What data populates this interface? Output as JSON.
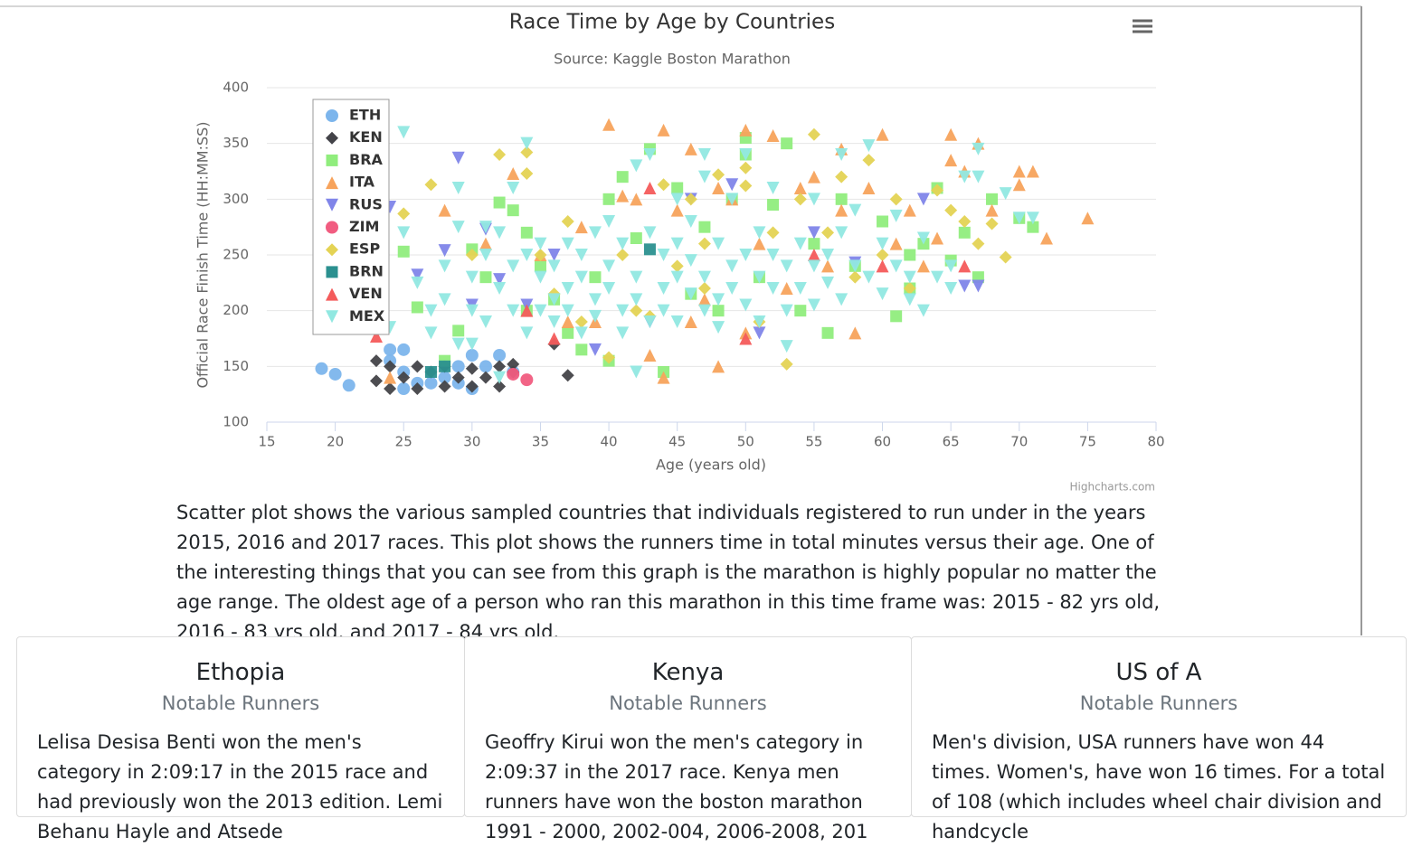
{
  "chart_data": {
    "type": "scatter",
    "title": "Race Time by Age by Countries",
    "subtitle": "Source: Kaggle Boston Marathon",
    "x_label": "Age (years old)",
    "y_label": "Official Race Finish Time (HH:MM:SS)",
    "credits": "Highcharts.com",
    "xlim": [
      15,
      80
    ],
    "ylim": [
      100,
      400
    ],
    "xticks": [
      15,
      20,
      25,
      30,
      35,
      40,
      45,
      50,
      55,
      60,
      65,
      70,
      75,
      80
    ],
    "yticks": [
      100,
      150,
      200,
      250,
      300,
      350,
      400
    ],
    "grid": true,
    "legend_position": "top-left",
    "series": [
      {
        "name": "ETH",
        "color": "#7cb5ec",
        "marker": "circle",
        "x": [
          19,
          20,
          21,
          24,
          24,
          25,
          25,
          25,
          26,
          27,
          28,
          29,
          30,
          30,
          31,
          32,
          33,
          29
        ],
        "values": [
          148,
          143,
          133,
          165,
          155,
          165,
          145,
          130,
          135,
          135,
          140,
          135,
          130,
          160,
          150,
          160,
          145,
          150
        ]
      },
      {
        "name": "KEN",
        "color": "#434348",
        "marker": "diamond",
        "x": [
          23,
          23,
          24,
          24,
          25,
          26,
          26,
          27,
          28,
          28,
          29,
          30,
          30,
          31,
          32,
          32,
          33,
          33,
          37,
          36
        ],
        "values": [
          155,
          137,
          150,
          130,
          140,
          150,
          130,
          145,
          150,
          132,
          140,
          148,
          132,
          140,
          150,
          132,
          145,
          152,
          142,
          170
        ]
      },
      {
        "name": "BRA",
        "color": "#90ed7d",
        "marker": "square",
        "x": [
          25,
          26,
          28,
          29,
          30,
          31,
          32,
          33,
          34,
          34,
          35,
          36,
          37,
          38,
          39,
          40,
          40,
          41,
          42,
          43,
          44,
          45,
          46,
          47,
          48,
          49,
          50,
          50,
          51,
          52,
          53,
          54,
          55,
          56,
          57,
          58,
          60,
          61,
          62,
          63,
          64,
          65,
          66,
          68,
          70,
          71,
          67,
          62
        ],
        "values": [
          253,
          203,
          155,
          182,
          255,
          230,
          297,
          290,
          270,
          200,
          240,
          210,
          180,
          165,
          230,
          300,
          155,
          320,
          265,
          345,
          145,
          310,
          215,
          275,
          200,
          300,
          355,
          340,
          230,
          295,
          350,
          200,
          260,
          180,
          300,
          240,
          280,
          195,
          220,
          260,
          310,
          245,
          270,
          300,
          283,
          275,
          230,
          250
        ]
      },
      {
        "name": "ITA",
        "color": "#f7a35c",
        "marker": "triangle",
        "x": [
          24,
          28,
          31,
          33,
          35,
          37,
          38,
          40,
          41,
          42,
          44,
          44,
          45,
          46,
          47,
          48,
          48,
          49,
          50,
          50,
          51,
          52,
          53,
          54,
          55,
          56,
          57,
          58,
          59,
          60,
          61,
          62,
          63,
          65,
          65,
          67,
          68,
          70,
          70,
          71,
          72,
          75,
          66,
          64,
          57,
          46,
          43,
          39
        ],
        "values": [
          140,
          290,
          260,
          323,
          250,
          190,
          275,
          367,
          303,
          300,
          362,
          140,
          290,
          345,
          210,
          150,
          310,
          300,
          362,
          180,
          260,
          357,
          220,
          310,
          320,
          240,
          290,
          180,
          310,
          358,
          260,
          290,
          240,
          358,
          335,
          350,
          290,
          325,
          313,
          325,
          265,
          283,
          325,
          265,
          345,
          190,
          160,
          190
        ]
      },
      {
        "name": "RUS",
        "color": "#8085e9",
        "marker": "triangle-down",
        "x": [
          24,
          26,
          28,
          29,
          31,
          32,
          34,
          39,
          43,
          46,
          49,
          51,
          55,
          58,
          63,
          66,
          67,
          36,
          30
        ],
        "values": [
          293,
          232,
          254,
          337,
          273,
          228,
          205,
          165,
          190,
          300,
          313,
          180,
          270,
          243,
          300,
          222,
          222,
          250,
          205
        ]
      },
      {
        "name": "ZIM",
        "color": "#f15c80",
        "marker": "circle",
        "x": [
          33,
          34
        ],
        "values": [
          143,
          138
        ]
      },
      {
        "name": "ESP",
        "color": "#e4d354",
        "marker": "diamond",
        "x": [
          25,
          27,
          30,
          32,
          34,
          34,
          35,
          37,
          38,
          40,
          41,
          43,
          44,
          45,
          46,
          47,
          48,
          50,
          50,
          51,
          52,
          53,
          54,
          55,
          56,
          57,
          58,
          59,
          60,
          61,
          62,
          64,
          65,
          66,
          67,
          68,
          69,
          47,
          42,
          36
        ],
        "values": [
          287,
          313,
          250,
          340,
          342,
          323,
          250,
          280,
          190,
          158,
          250,
          195,
          313,
          240,
          300,
          220,
          322,
          328,
          312,
          190,
          270,
          152,
          300,
          358,
          270,
          320,
          230,
          335,
          250,
          300,
          220,
          308,
          290,
          280,
          260,
          278,
          248,
          260,
          200,
          215
        ]
      },
      {
        "name": "BRN",
        "color": "#2b908f",
        "marker": "square",
        "x": [
          27,
          28,
          43
        ],
        "values": [
          145,
          150,
          255
        ]
      },
      {
        "name": "VEN",
        "color": "#f45b5b",
        "marker": "triangle",
        "x": [
          23,
          34,
          36,
          43,
          50,
          55,
          60,
          66
        ],
        "values": [
          177,
          200,
          175,
          310,
          175,
          250,
          240,
          240
        ]
      },
      {
        "name": "MEX",
        "color": "#91e8e1",
        "marker": "triangle-down",
        "x": [
          23,
          24,
          25,
          25,
          26,
          27,
          27,
          28,
          28,
          29,
          29,
          30,
          30,
          30,
          31,
          31,
          31,
          32,
          32,
          33,
          33,
          33,
          34,
          34,
          34,
          35,
          35,
          35,
          36,
          36,
          36,
          37,
          37,
          37,
          38,
          38,
          38,
          39,
          39,
          39,
          40,
          40,
          40,
          41,
          41,
          41,
          42,
          42,
          42,
          43,
          43,
          43,
          44,
          44,
          44,
          45,
          45,
          45,
          45,
          46,
          46,
          46,
          47,
          47,
          47,
          48,
          48,
          48,
          49,
          49,
          49,
          50,
          50,
          50,
          51,
          51,
          51,
          52,
          52,
          52,
          53,
          53,
          53,
          54,
          54,
          55,
          55,
          55,
          56,
          56,
          57,
          57,
          57,
          58,
          58,
          59,
          59,
          60,
          60,
          61,
          61,
          62,
          62,
          63,
          63,
          64,
          65,
          65,
          66,
          67,
          67,
          69,
          70,
          71,
          42,
          32,
          29,
          47
        ],
        "values": [
          200,
          185,
          360,
          270,
          225,
          180,
          200,
          210,
          240,
          310,
          275,
          200,
          170,
          230,
          275,
          250,
          190,
          220,
          270,
          310,
          200,
          240,
          350,
          180,
          250,
          230,
          200,
          260,
          210,
          240,
          190,
          260,
          220,
          200,
          180,
          250,
          230,
          210,
          270,
          195,
          240,
          220,
          280,
          200,
          260,
          180,
          330,
          230,
          210,
          340,
          270,
          190,
          250,
          220,
          200,
          300,
          260,
          230,
          190,
          245,
          215,
          280,
          320,
          230,
          200,
          260,
          210,
          185,
          240,
          220,
          300,
          340,
          250,
          205,
          230,
          270,
          190,
          220,
          250,
          310,
          240,
          200,
          168,
          260,
          220,
          240,
          300,
          205,
          250,
          225,
          340,
          270,
          210,
          240,
          290,
          348,
          230,
          260,
          215,
          240,
          285,
          230,
          210,
          265,
          200,
          230,
          240,
          220,
          320,
          320,
          345,
          305,
          283,
          283,
          145,
          140,
          170,
          340
        ]
      }
    ]
  },
  "description": "Scatter plot shows the various sampled countries that individuals registered to run under in the years 2015, 2016 and 2017 races. This plot shows the runners time in total minutes versus their age. One of the interesting things that you can see from this graph is the marathon is highly popular no matter the age range. The oldest age of a person who ran this marathon in this time frame was: 2015 - 82 yrs old, 2016 - 83 yrs old, and 2017 - 84 yrs old.",
  "cards": [
    {
      "title": "Ethopia",
      "subtitle": "Notable Runners",
      "text": "Lelisa Desisa Benti won the men's category in 2:09:17 in the 2015 race and had previously won the 2013 edition. Lemi Behanu Hayle and Atsede"
    },
    {
      "title": "Kenya",
      "subtitle": "Notable Runners",
      "text": "Geoffry Kirui won the men's category in 2:09:37 in the 2017 race. Kenya men runners have won the boston marathon 1991 - 2000, 2002-004, 2006-2008, 201"
    },
    {
      "title": "US of A",
      "subtitle": "Notable Runners",
      "text": "Men's division, USA runners have won 44 times. Women's, have won 16 times. For a total of 108 (which includes wheel chair division and handcycle"
    }
  ]
}
